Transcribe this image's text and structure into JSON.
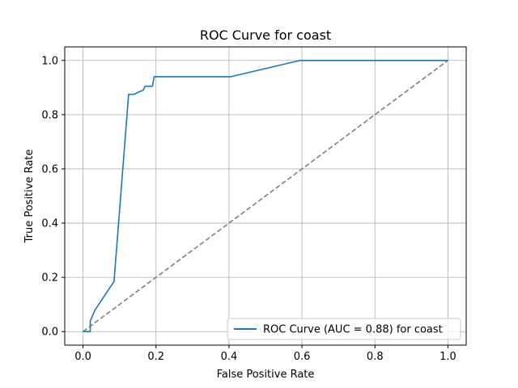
{
  "chart_data": {
    "type": "line",
    "title": "ROC Curve for coast",
    "xlabel": "False Positive Rate",
    "ylabel": "True Positive Rate",
    "xlim": [
      -0.05,
      1.05
    ],
    "ylim": [
      -0.05,
      1.05
    ],
    "xticks": [
      0.0,
      0.2,
      0.4,
      0.6,
      0.8,
      1.0
    ],
    "yticks": [
      0.0,
      0.2,
      0.4,
      0.6,
      0.8,
      1.0
    ],
    "xtick_labels": [
      "0.0",
      "0.2",
      "0.4",
      "0.6",
      "0.8",
      "1.0"
    ],
    "ytick_labels": [
      "0.0",
      "0.2",
      "0.4",
      "0.6",
      "0.8",
      "1.0"
    ],
    "grid": true,
    "legend_position": "lower-right",
    "series": [
      {
        "name": "ROC Curve (AUC = 0.88) for coast",
        "color": "#1f77b4",
        "style": "solid",
        "x": [
          0.0,
          0.02,
          0.02,
          0.033,
          0.085,
          0.125,
          0.14,
          0.155,
          0.165,
          0.17,
          0.18,
          0.19,
          0.195,
          0.405,
          0.595,
          1.0
        ],
        "y": [
          0.0,
          0.0,
          0.04,
          0.08,
          0.185,
          0.875,
          0.875,
          0.885,
          0.89,
          0.905,
          0.905,
          0.905,
          0.94,
          0.94,
          1.0,
          1.0
        ]
      },
      {
        "name": "",
        "color": "#808080",
        "style": "dashed",
        "x": [
          0.0,
          1.0
        ],
        "y": [
          0.0,
          1.0
        ]
      }
    ]
  }
}
